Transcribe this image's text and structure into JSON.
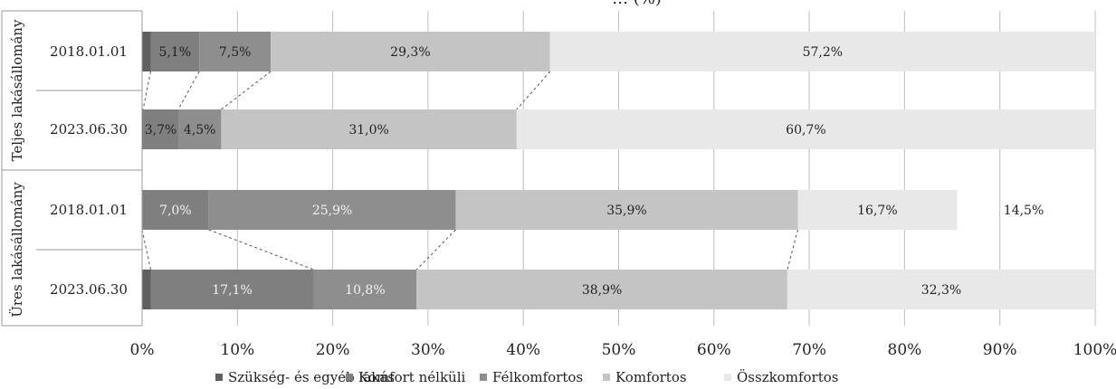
{
  "chart_data": {
    "type": "bar",
    "orientation": "horizontal",
    "stacked": "percent",
    "title": "… (%)",
    "groups": [
      {
        "label": "Teljes lakásállomány",
        "rows": [
          "2018.01.01",
          "2023.06.30"
        ]
      },
      {
        "label": "Üres lakásállomány",
        "rows": [
          "2018.01.01",
          "2023.06.30"
        ]
      }
    ],
    "categories": [
      "2018.01.01",
      "2023.06.30",
      "2018.01.01",
      "2023.06.30"
    ],
    "series": [
      {
        "name": "Szükség- és egyéb lakás",
        "color": "#5f5f5f",
        "values": [
          0.9,
          0.1,
          0.0,
          0.9
        ],
        "labels": [
          "",
          "",
          "",
          ""
        ]
      },
      {
        "name": "Komfort nélküli",
        "color": "#7f7f7f",
        "values": [
          5.1,
          3.7,
          7.0,
          17.1
        ],
        "labels": [
          "5,1%",
          "3,7%",
          "7,0%",
          "17,1%"
        ]
      },
      {
        "name": "Félkomfortos",
        "color": "#8e8e8e",
        "values": [
          7.5,
          4.5,
          25.9,
          10.8
        ],
        "labels": [
          "7,5%",
          "4,5%",
          "25,9%",
          "10,8%"
        ]
      },
      {
        "name": "Komfortos",
        "color": "#c4c4c4",
        "values": [
          29.3,
          31.0,
          35.9,
          38.9
        ],
        "labels": [
          "29,3%",
          "31,0%",
          "35,9%",
          "38,9%"
        ]
      },
      {
        "name": "Összkomfortos",
        "color": "#e8e8e8",
        "values": [
          57.2,
          60.7,
          16.7,
          32.3
        ],
        "labels": [
          "57,2%",
          "60,7%",
          "16,7%",
          "32,3%"
        ]
      }
    ],
    "extra_labels": [
      {
        "row": 2,
        "text": "14,5%"
      }
    ],
    "xlim": [
      0,
      100
    ],
    "xticks": [
      "0%",
      "10%",
      "20%",
      "30%",
      "40%",
      "50%",
      "60%",
      "70%",
      "80%",
      "90%",
      "100%"
    ],
    "grid": true,
    "legend_position": "bottom"
  }
}
